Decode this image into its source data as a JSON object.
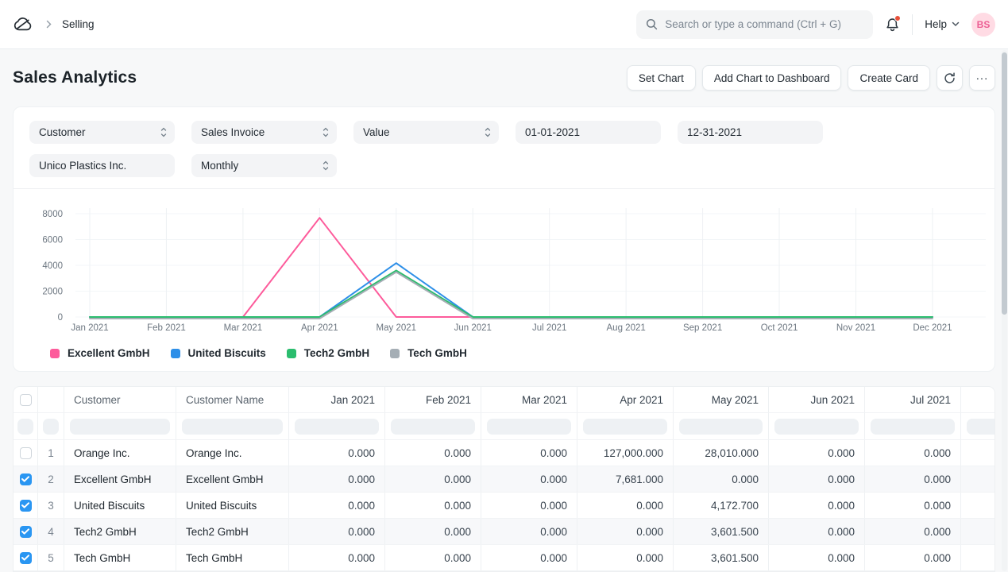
{
  "navbar": {
    "breadcrumb": "Selling",
    "search_placeholder": "Search or type a command (Ctrl + G)",
    "help_label": "Help",
    "avatar_initials": "BS"
  },
  "page": {
    "title": "Sales Analytics",
    "actions": {
      "set_chart": "Set Chart",
      "add_chart": "Add Chart to Dashboard",
      "create_card": "Create Card"
    }
  },
  "filters": {
    "tree_type": "Customer",
    "based_on": "Sales Invoice",
    "value_quantity": "Value",
    "from_date": "01-01-2021",
    "to_date": "12-31-2021",
    "company": "Unico Plastics Inc.",
    "range": "Monthly"
  },
  "chart_data": {
    "type": "line",
    "x": [
      "Jan 2021",
      "Feb 2021",
      "Mar 2021",
      "Apr 2021",
      "May 2021",
      "Jun 2021",
      "Jul 2021",
      "Aug 2021",
      "Sep 2021",
      "Oct 2021",
      "Nov 2021",
      "Dec 2021"
    ],
    "yticks": [
      0,
      2000,
      4000,
      6000,
      8000
    ],
    "ylim": [
      0,
      8000
    ],
    "grid": true,
    "legend_position": "bottom",
    "series": [
      {
        "name": "Excellent GmbH",
        "color": "#fd5b9b",
        "values": [
          0,
          0,
          0,
          7681,
          0,
          0,
          0,
          0,
          0,
          0,
          0,
          0
        ]
      },
      {
        "name": "United Biscuits",
        "color": "#2d8fe8",
        "values": [
          0,
          0,
          0,
          0,
          4172.7,
          0,
          0,
          0,
          0,
          0,
          0,
          0
        ]
      },
      {
        "name": "Tech2 GmbH",
        "color": "#2bbd6e",
        "values": [
          0,
          0,
          0,
          0,
          3601.5,
          0,
          0,
          0,
          0,
          0,
          0,
          0
        ]
      },
      {
        "name": "Tech GmbH",
        "color": "#a5aeb5",
        "values": [
          0,
          0,
          0,
          0,
          3601.5,
          0,
          0,
          0,
          0,
          0,
          0,
          0
        ]
      }
    ]
  },
  "table": {
    "columns": [
      "Customer",
      "Customer Name",
      "Jan 2021",
      "Feb 2021",
      "Mar 2021",
      "Apr 2021",
      "May 2021",
      "Jun 2021",
      "Jul 2021"
    ],
    "rows": [
      {
        "checked": false,
        "index": 1,
        "customer": "Orange Inc.",
        "customer_name": "Orange Inc.",
        "values": [
          "0.000",
          "0.000",
          "0.000",
          "127,000.000",
          "28,010.000",
          "0.000",
          "0.000"
        ]
      },
      {
        "checked": true,
        "index": 2,
        "customer": "Excellent GmbH",
        "customer_name": "Excellent GmbH",
        "values": [
          "0.000",
          "0.000",
          "0.000",
          "7,681.000",
          "0.000",
          "0.000",
          "0.000"
        ]
      },
      {
        "checked": true,
        "index": 3,
        "customer": "United Biscuits",
        "customer_name": "United Biscuits",
        "values": [
          "0.000",
          "0.000",
          "0.000",
          "0.000",
          "4,172.700",
          "0.000",
          "0.000"
        ]
      },
      {
        "checked": true,
        "index": 4,
        "customer": "Tech2 GmbH",
        "customer_name": "Tech2 GmbH",
        "values": [
          "0.000",
          "0.000",
          "0.000",
          "0.000",
          "3,601.500",
          "0.000",
          "0.000"
        ]
      },
      {
        "checked": true,
        "index": 5,
        "customer": "Tech GmbH",
        "customer_name": "Tech GmbH",
        "values": [
          "0.000",
          "0.000",
          "0.000",
          "0.000",
          "3,601.500",
          "0.000",
          "0.000"
        ]
      }
    ]
  },
  "colors": {
    "accent": "#2490ef",
    "checkbox_checked": "#2a96f2",
    "avatar_bg": "#ffdbe4",
    "avatar_text": "#ec5f94",
    "notification_dot": "#e8503a",
    "gridline": "#eef1f4"
  }
}
